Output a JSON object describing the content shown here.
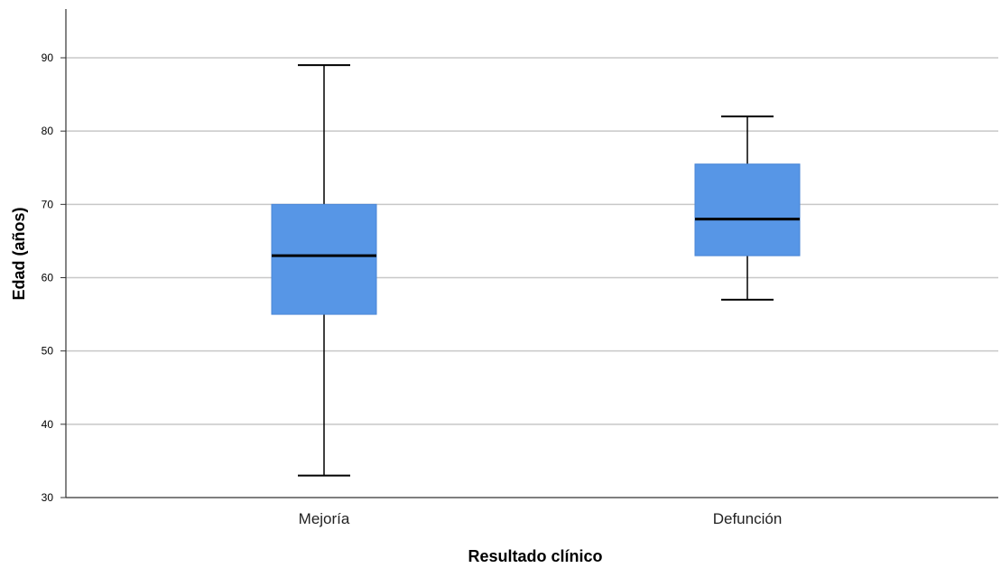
{
  "chart_data": {
    "type": "boxplot",
    "title": "",
    "xlabel": "Resultado clínico",
    "ylabel": "Edad (años)",
    "ylim": [
      30,
      96
    ],
    "yticks": [
      30,
      40,
      50,
      60,
      70,
      80,
      90
    ],
    "grid": true,
    "categories": [
      "Mejoría",
      "Defunción"
    ],
    "boxes": [
      {
        "category": "Mejoría",
        "min": 33,
        "q1": 55,
        "median": 63,
        "q3": 70,
        "max": 89
      },
      {
        "category": "Defunción",
        "min": 57,
        "q1": 63,
        "median": 68,
        "q3": 75.5,
        "max": 82
      }
    ],
    "colors": {
      "box_fill": "#5796E6",
      "box_edge": "#4A86D6",
      "median": "#000000",
      "whisker": "#000000",
      "grid": "#C8C8C8",
      "axis": "#333333"
    }
  }
}
